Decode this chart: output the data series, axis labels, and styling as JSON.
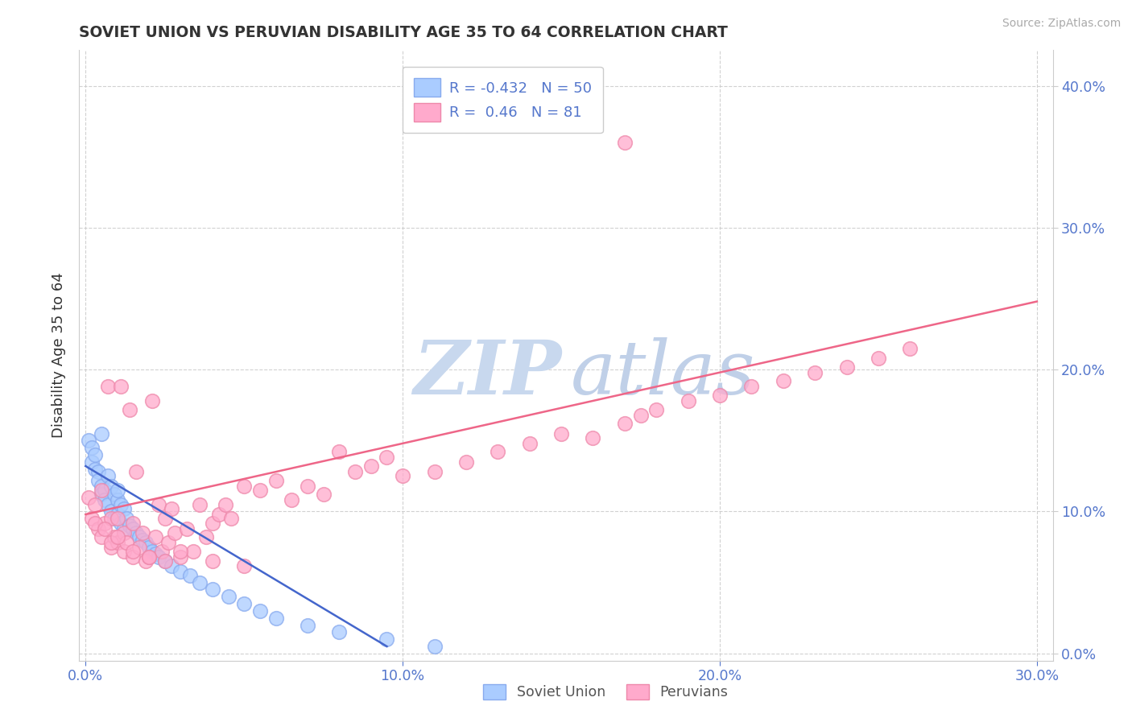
{
  "title": "SOVIET UNION VS PERUVIAN DISABILITY AGE 35 TO 64 CORRELATION CHART",
  "source": "Source: ZipAtlas.com",
  "xlim": [
    -0.002,
    0.305
  ],
  "ylim": [
    -0.005,
    0.425
  ],
  "soviet_R": -0.432,
  "soviet_N": 50,
  "peruvian_R": 0.46,
  "peruvian_N": 81,
  "legend_labels": [
    "Soviet Union",
    "Peruvians"
  ],
  "soviet_color": "#aaccff",
  "peruvian_color": "#ffaacc",
  "soviet_edge_color": "#88aaee",
  "peruvian_edge_color": "#ee88aa",
  "soviet_line_color": "#4466cc",
  "peruvian_line_color": "#ee6688",
  "background_color": "#ffffff",
  "grid_color": "#cccccc",
  "title_color": "#333333",
  "ylabel_color": "#333333",
  "tick_color": "#5577cc",
  "source_color": "#aaaaaa",
  "watermark_zip_color": "#c8d8ee",
  "watermark_atlas_color": "#c0d0e8",
  "soviet_x": [
    0.001,
    0.002,
    0.002,
    0.003,
    0.003,
    0.004,
    0.004,
    0.005,
    0.005,
    0.005,
    0.006,
    0.006,
    0.007,
    0.007,
    0.008,
    0.008,
    0.009,
    0.009,
    0.01,
    0.01,
    0.01,
    0.011,
    0.011,
    0.012,
    0.012,
    0.013,
    0.014,
    0.015,
    0.016,
    0.017,
    0.018,
    0.019,
    0.02,
    0.021,
    0.022,
    0.023,
    0.025,
    0.027,
    0.03,
    0.033,
    0.036,
    0.04,
    0.045,
    0.05,
    0.055,
    0.06,
    0.07,
    0.08,
    0.095,
    0.11
  ],
  "soviet_y": [
    0.15,
    0.145,
    0.135,
    0.14,
    0.13,
    0.128,
    0.122,
    0.155,
    0.118,
    0.112,
    0.115,
    0.108,
    0.125,
    0.105,
    0.118,
    0.1,
    0.112,
    0.095,
    0.108,
    0.115,
    0.098,
    0.105,
    0.092,
    0.102,
    0.088,
    0.095,
    0.09,
    0.088,
    0.085,
    0.082,
    0.08,
    0.078,
    0.075,
    0.072,
    0.07,
    0.068,
    0.065,
    0.062,
    0.058,
    0.055,
    0.05,
    0.045,
    0.04,
    0.035,
    0.03,
    0.025,
    0.02,
    0.015,
    0.01,
    0.005
  ],
  "peruvian_x": [
    0.001,
    0.002,
    0.003,
    0.004,
    0.005,
    0.005,
    0.006,
    0.007,
    0.008,
    0.008,
    0.009,
    0.01,
    0.01,
    0.011,
    0.012,
    0.012,
    0.013,
    0.014,
    0.015,
    0.015,
    0.016,
    0.017,
    0.018,
    0.019,
    0.02,
    0.021,
    0.022,
    0.023,
    0.024,
    0.025,
    0.026,
    0.027,
    0.028,
    0.03,
    0.032,
    0.034,
    0.036,
    0.038,
    0.04,
    0.042,
    0.044,
    0.046,
    0.05,
    0.055,
    0.06,
    0.065,
    0.07,
    0.075,
    0.08,
    0.085,
    0.09,
    0.095,
    0.1,
    0.11,
    0.12,
    0.13,
    0.14,
    0.15,
    0.16,
    0.17,
    0.175,
    0.18,
    0.19,
    0.2,
    0.21,
    0.22,
    0.23,
    0.24,
    0.25,
    0.26,
    0.003,
    0.006,
    0.008,
    0.01,
    0.015,
    0.02,
    0.025,
    0.03,
    0.04,
    0.05,
    0.17
  ],
  "peruvian_y": [
    0.11,
    0.095,
    0.105,
    0.088,
    0.082,
    0.115,
    0.092,
    0.188,
    0.075,
    0.095,
    0.082,
    0.078,
    0.095,
    0.188,
    0.072,
    0.085,
    0.078,
    0.172,
    0.068,
    0.092,
    0.128,
    0.075,
    0.085,
    0.065,
    0.068,
    0.178,
    0.082,
    0.105,
    0.072,
    0.095,
    0.078,
    0.102,
    0.085,
    0.068,
    0.088,
    0.072,
    0.105,
    0.082,
    0.092,
    0.098,
    0.105,
    0.095,
    0.118,
    0.115,
    0.122,
    0.108,
    0.118,
    0.112,
    0.142,
    0.128,
    0.132,
    0.138,
    0.125,
    0.128,
    0.135,
    0.142,
    0.148,
    0.155,
    0.152,
    0.162,
    0.168,
    0.172,
    0.178,
    0.182,
    0.188,
    0.192,
    0.198,
    0.202,
    0.208,
    0.215,
    0.092,
    0.088,
    0.078,
    0.082,
    0.072,
    0.068,
    0.065,
    0.072,
    0.065,
    0.062,
    0.36
  ],
  "peruvian_line_x0": 0.0,
  "peruvian_line_y0": 0.098,
  "peruvian_line_x1": 0.3,
  "peruvian_line_y1": 0.248,
  "soviet_line_x0": 0.0,
  "soviet_line_y0": 0.132,
  "soviet_line_x1": 0.095,
  "soviet_line_y1": 0.005
}
